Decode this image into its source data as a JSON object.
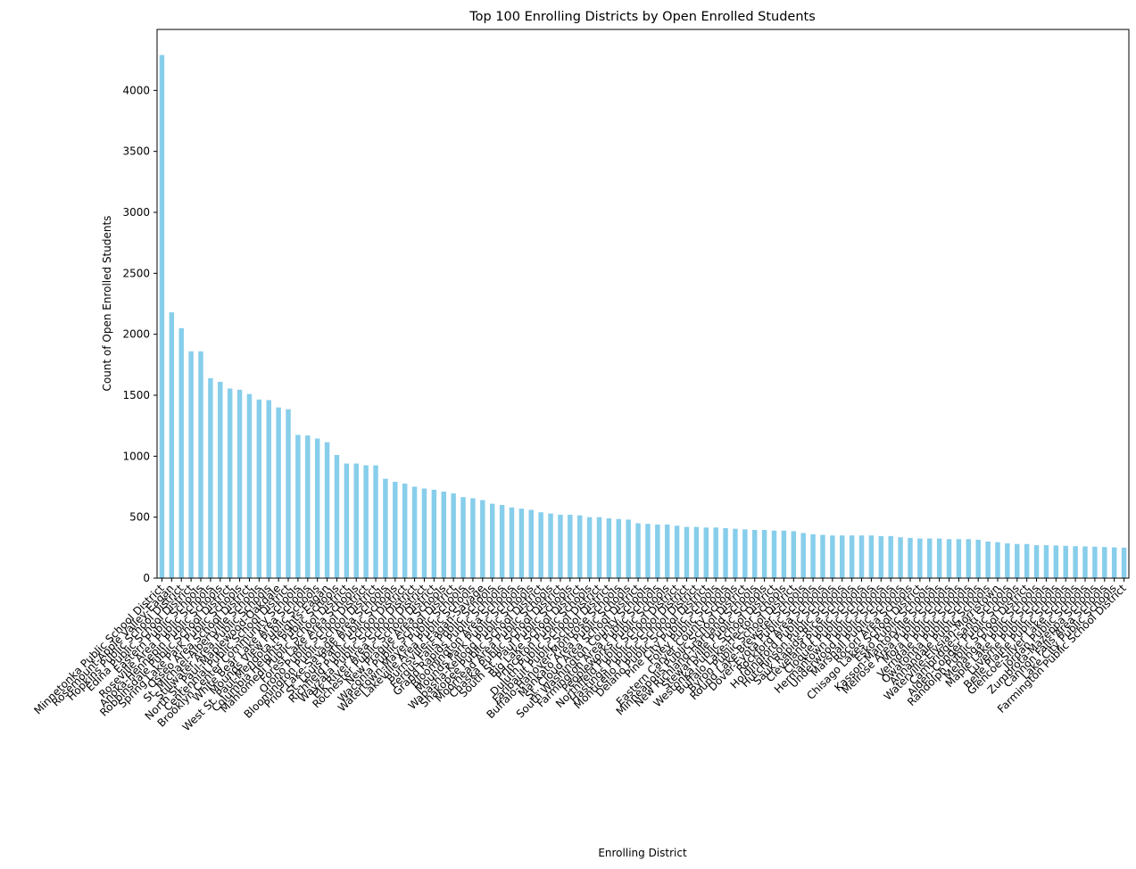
{
  "chart_data": {
    "type": "bar",
    "title": "Top 100 Enrolling Districts by Open Enrolled Students",
    "xlabel": "Enrolling District",
    "ylabel": "Count of Open Enrolled Students",
    "ylim": [
      0,
      4500
    ],
    "yticks": [
      0,
      500,
      1000,
      1500,
      2000,
      2500,
      3000,
      3500,
      4000
    ],
    "grid": false,
    "bar_color": "#87ceeb",
    "categories": [
      "Minnetonka Public School District",
      "Rosemount-Apple Valley-Eagan",
      "Hopkins Public School District",
      "Edina Public School District",
      "Eastern Public Schools",
      "Roseville Area Public Schools",
      "Anoka-Hennepin Public Schools",
      "Robbinsdale Public School District",
      "Spring Lake Park Public Schools",
      "Osseo Area School District",
      "St. Michael-Albertville Schools",
      "Stillwater Area Public Schools",
      "North St. Paul-Maplewood-Oakdale",
      "Centennial Public School District",
      "Brooklyn Center Community Schools",
      "White Bear Lake Area Schools",
      "Mounds View Public Schools",
      "West St. Paul-Mendota Heights-Eagan",
      "Columbia Heights Public Schools",
      "Mahtomedi Public School District",
      "Forest Lake Area Schools",
      "Orono Public School District",
      "Bloomington Public School District",
      "Prior Lake-Savage Area Schools",
      "St. Louis Park Public Schools",
      "Richfield Public School District",
      "Wayzata Public School District",
      "Elk River Area School District",
      "Rochester Public School District",
      "New Prague Area Schools",
      "Waconia Public School District",
      "Watertown-Mayer Public Schools",
      "Lakeville Area Public Schools",
      "Burnsville-Eagan-Savage",
      "Fergus Falls Public Schools",
      "Grand Rapids Public Schools",
      "Bloomington Area Schools",
      "Mounds Park Public Schools",
      "Wabasha-Kellogg Public Schools",
      "Shakopee Public School District",
      "Moorhead Area Public Schools",
      "Chaska Public School District",
      "South St. Paul Public Schools",
      "Big Lake School District",
      "Princeton Public Schools",
      "Duluth Public School District",
      "Faribault Public School District",
      "Buffalo-Hanover-Montrose Schools",
      "Mankato Area Public Schools",
      "St. Cloud Area School District",
      "South Washington County Schools",
      "Farmington Area Public Schools",
      "Peopleworks Public Schools",
      "Northfield Public School District",
      "Hastings Public School District",
      "Monticello Public School District",
      "Delano Public School District",
      "Pine City Public Schools",
      "Foley Public Schools",
      "Eastern Carver County Schools",
      "Minneapolis Public School District",
      "New Richland-Hartland Schools",
      "Stewartville Public Schools",
      "Westonka Public School District",
      "Buffalo Lake-Hector Schools",
      "Byron Public School District",
      "Round Lake-Brewster Schools",
      "Dover-Eyota Public Schools",
      "Rockford Area Schools",
      "Holdingford Public Schools",
      "Hutchinson Public Schools",
      "Sauk Rapids-Rice Schools",
      "Cleveland Public Schools",
      "Cloquet Public Schools",
      "Hermantown Public Schools",
      "Underwood Public Schools",
      "Marshall Public Schools",
      "Rocori Area Schools",
      "Chisago Lakes School District",
      "Esko Public Schools",
      "Kasson-Mantorville Schools",
      "Melrose Area Public Schools",
      "Mora Public Schools",
      "Verndale Public Schools",
      "Owatonna Public Schools",
      "Annandale Public Schools",
      "Waterville-Elysian-Morristown",
      "Cambridge-Isanti Schools",
      "Alden-Conger Public Schools",
      "Randolph Public School District",
      "Menahga Public Schools",
      "Maple Lake Public Schools",
      "Luverne Public Schools",
      "Belle Plaine Public Schools",
      "Glencoe-Silver Lake Schools",
      "Jordan Public Schools",
      "Zumbrota-Mazeppa Schools",
      "Cannon Falls Area Schools",
      "Lake City Public Schools",
      "Farmington Public School District"
    ],
    "values": [
      4290,
      2180,
      2050,
      1860,
      1860,
      1640,
      1610,
      1555,
      1545,
      1510,
      1465,
      1460,
      1400,
      1385,
      1175,
      1170,
      1145,
      1115,
      1010,
      940,
      940,
      925,
      925,
      815,
      790,
      775,
      750,
      735,
      725,
      710,
      695,
      665,
      655,
      640,
      610,
      600,
      580,
      570,
      560,
      540,
      530,
      520,
      520,
      515,
      500,
      500,
      490,
      485,
      480,
      450,
      445,
      440,
      440,
      430,
      420,
      420,
      415,
      415,
      410,
      405,
      400,
      395,
      395,
      390,
      390,
      385,
      370,
      360,
      355,
      350,
      350,
      350,
      350,
      350,
      345,
      345,
      335,
      330,
      325,
      325,
      325,
      320,
      320,
      320,
      315,
      300,
      295,
      285,
      280,
      280,
      270,
      270,
      268,
      265,
      262,
      260,
      258,
      255,
      252,
      250
    ]
  }
}
